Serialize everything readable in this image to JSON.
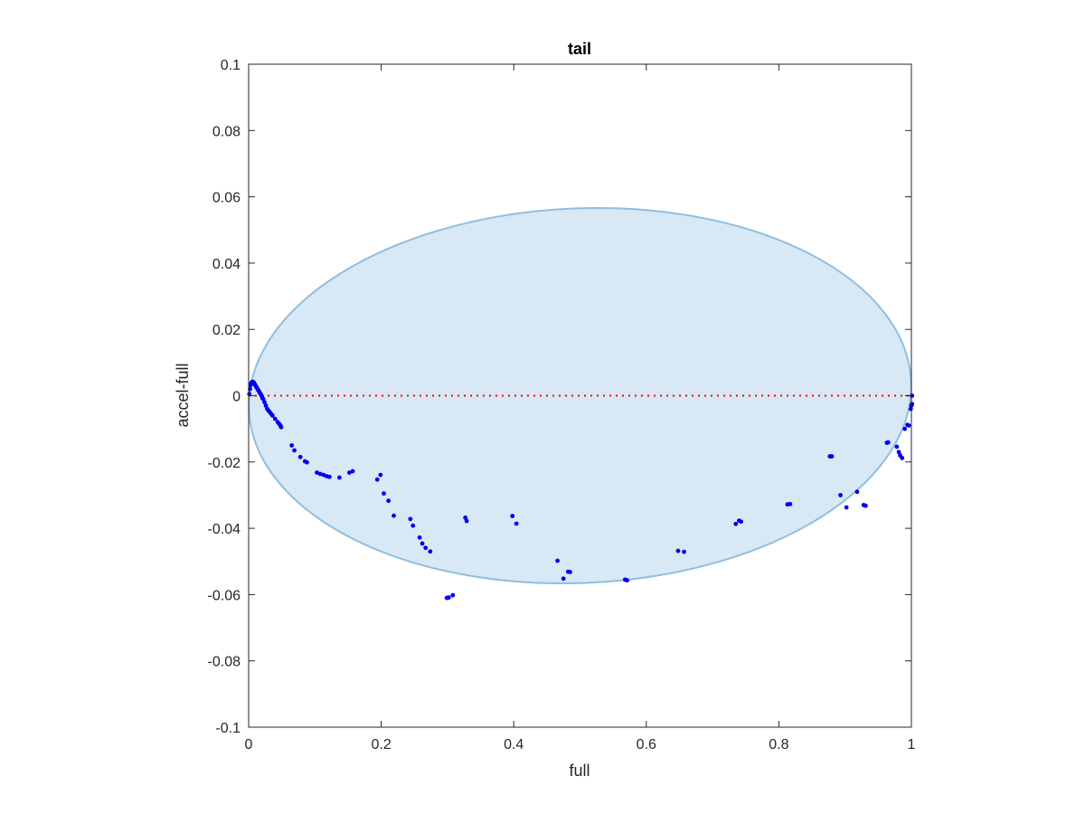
{
  "chart_data": {
    "type": "scatter",
    "title": "tail",
    "xlabel": "full",
    "ylabel": "accel-full",
    "xlim": [
      0,
      1
    ],
    "ylim": [
      -0.1,
      0.1
    ],
    "xticks": [
      0,
      0.2,
      0.4,
      0.6,
      0.8,
      1
    ],
    "xtick_labels": [
      "0",
      "0.2",
      "0.4",
      "0.6",
      "0.8",
      "1"
    ],
    "yticks": [
      -0.1,
      -0.08,
      -0.06,
      -0.04,
      -0.02,
      0,
      0.02,
      0.04,
      0.06,
      0.08,
      0.1
    ],
    "ytick_labels": [
      "-0.1",
      "-0.08",
      "-0.06",
      "-0.04",
      "-0.02",
      "0",
      "0.02",
      "0.04",
      "0.06",
      "0.08",
      "0.1"
    ],
    "grid": false,
    "ellipse": {
      "cx": 0.5,
      "cy": 0,
      "rx": 0.5,
      "ry": 0.0565,
      "rotation_deg": -2.5,
      "fill": "#d8e8f4",
      "stroke": "#8fbfe0"
    },
    "reference_line": {
      "y": 0,
      "x_from": 0,
      "x_to": 1,
      "color": "#ff0000",
      "style": "dotted"
    },
    "series": [
      {
        "color": "#0000ee",
        "points": [
          [
            0.001,
            0.0005
          ],
          [
            0.002,
            0.002
          ],
          [
            0.003,
            0.0032
          ],
          [
            0.004,
            0.0038
          ],
          [
            0.005,
            0.0041
          ],
          [
            0.006,
            0.0042
          ],
          [
            0.007,
            0.0041
          ],
          [
            0.008,
            0.0039
          ],
          [
            0.009,
            0.0036
          ],
          [
            0.01,
            0.0032
          ],
          [
            0.011,
            0.0028
          ],
          [
            0.012,
            0.0025
          ],
          [
            0.013,
            0.0022
          ],
          [
            0.014,
            0.0018
          ],
          [
            0.015,
            0.0015
          ],
          [
            0.016,
            0.0012
          ],
          [
            0.017,
            0.0008
          ],
          [
            0.018,
            0.0005
          ],
          [
            0.019,
            0.0002
          ],
          [
            0.02,
            -0.0002
          ],
          [
            0.021,
            -0.0008
          ],
          [
            0.022,
            -0.001
          ],
          [
            0.024,
            -0.002
          ],
          [
            0.026,
            -0.003
          ],
          [
            0.028,
            -0.004
          ],
          [
            0.03,
            -0.0045
          ],
          [
            0.032,
            -0.005
          ],
          [
            0.034,
            -0.0055
          ],
          [
            0.036,
            -0.006
          ],
          [
            0.04,
            -0.007
          ],
          [
            0.044,
            -0.008
          ],
          [
            0.046,
            -0.0085
          ],
          [
            0.048,
            -0.009
          ],
          [
            0.049,
            -0.0095
          ],
          [
            0.065,
            -0.015
          ],
          [
            0.069,
            -0.0165
          ],
          [
            0.078,
            -0.0185
          ],
          [
            0.085,
            -0.0198
          ],
          [
            0.088,
            -0.0201
          ],
          [
            0.103,
            -0.0232
          ],
          [
            0.108,
            -0.0236
          ],
          [
            0.113,
            -0.0239
          ],
          [
            0.118,
            -0.0243
          ],
          [
            0.122,
            -0.0245
          ],
          [
            0.137,
            -0.0247
          ],
          [
            0.152,
            -0.0232
          ],
          [
            0.157,
            -0.0228
          ],
          [
            0.194,
            -0.0253
          ],
          [
            0.199,
            -0.0239
          ],
          [
            0.204,
            -0.0295
          ],
          [
            0.211,
            -0.0317
          ],
          [
            0.219,
            -0.0362
          ],
          [
            0.244,
            -0.0372
          ],
          [
            0.248,
            -0.0392
          ],
          [
            0.258,
            -0.0428
          ],
          [
            0.262,
            -0.0446
          ],
          [
            0.267,
            -0.0459
          ],
          [
            0.274,
            -0.047
          ],
          [
            0.299,
            -0.061
          ],
          [
            0.302,
            -0.0609
          ],
          [
            0.308,
            -0.0602
          ],
          [
            0.327,
            -0.0368
          ],
          [
            0.329,
            -0.0378
          ],
          [
            0.398,
            -0.0363
          ],
          [
            0.404,
            -0.0386
          ],
          [
            0.466,
            -0.0498
          ],
          [
            0.475,
            -0.0552
          ],
          [
            0.482,
            -0.0531
          ],
          [
            0.485,
            -0.0532
          ],
          [
            0.568,
            -0.0555
          ],
          [
            0.571,
            -0.0557
          ],
          [
            0.648,
            -0.0468
          ],
          [
            0.657,
            -0.0471
          ],
          [
            0.735,
            -0.0387
          ],
          [
            0.74,
            -0.0377
          ],
          [
            0.743,
            -0.038
          ],
          [
            0.813,
            -0.0328
          ],
          [
            0.817,
            -0.0327
          ],
          [
            0.877,
            -0.0183
          ],
          [
            0.88,
            -0.0183
          ],
          [
            0.893,
            -0.03
          ],
          [
            0.902,
            -0.0337
          ],
          [
            0.918,
            -0.029
          ],
          [
            0.928,
            -0.033
          ],
          [
            0.931,
            -0.0332
          ],
          [
            0.963,
            -0.0142
          ],
          [
            0.965,
            -0.0141
          ],
          [
            0.978,
            -0.0154
          ],
          [
            0.981,
            -0.017
          ],
          [
            0.983,
            -0.018
          ],
          [
            0.986,
            -0.0188
          ],
          [
            0.99,
            -0.01
          ],
          [
            0.994,
            -0.0088
          ],
          [
            0.996,
            -0.009
          ],
          [
            0.999,
            -0.004
          ],
          [
            1.0,
            -0.003
          ],
          [
            1.001,
            -0.0025
          ],
          [
            1.001,
            0.0
          ]
        ]
      }
    ]
  }
}
